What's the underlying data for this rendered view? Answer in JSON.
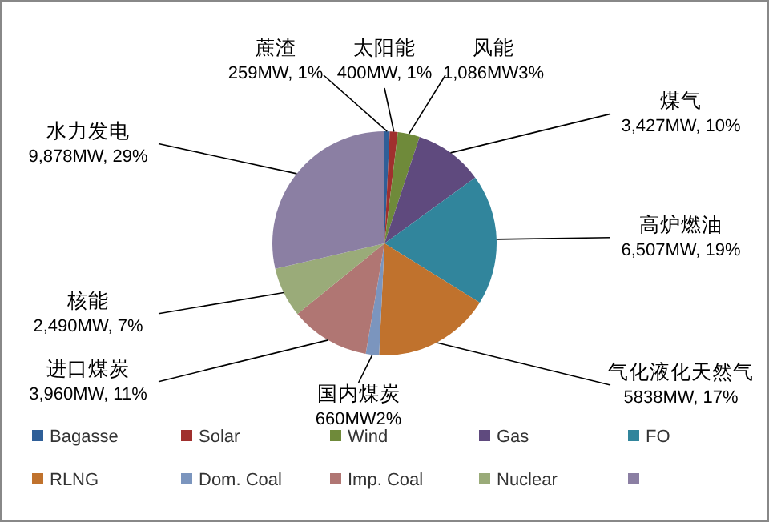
{
  "chart_data": {
    "type": "pie",
    "categories": [
      "Bagasse",
      "Solar",
      "Wind",
      "Gas",
      "FO",
      "RLNG",
      "Dom. Coal",
      "Imp. Coal",
      "Nuclear",
      null
    ],
    "values": [
      259,
      400,
      1086,
      3427,
      6507,
      5838,
      660,
      3960,
      2490,
      9878
    ],
    "colors": [
      "#2f5f98",
      "#a0302e",
      "#6f8a3a",
      "#5f4a7e",
      "#31859c",
      "#c0722d",
      "#7b95be",
      "#b07673",
      "#9aab79",
      "#8b7fa3"
    ],
    "value_labels": [
      "蔗渣\n259MW, 1%",
      "太阳能\n400MW, 1%",
      "风能\n1,086MW3%",
      "煤气\n3,427MW, 10%",
      "高炉燃油\n6,507MW, 19%",
      "气化液化天然气\n5838MW, 17%",
      "国内煤炭\n660MW2%",
      "进口煤炭\n3,960MW, 11%",
      "核能\n2,490MW, 7%",
      "水力发电\n9,878MW, 29%"
    ],
    "legend": "bottom"
  }
}
